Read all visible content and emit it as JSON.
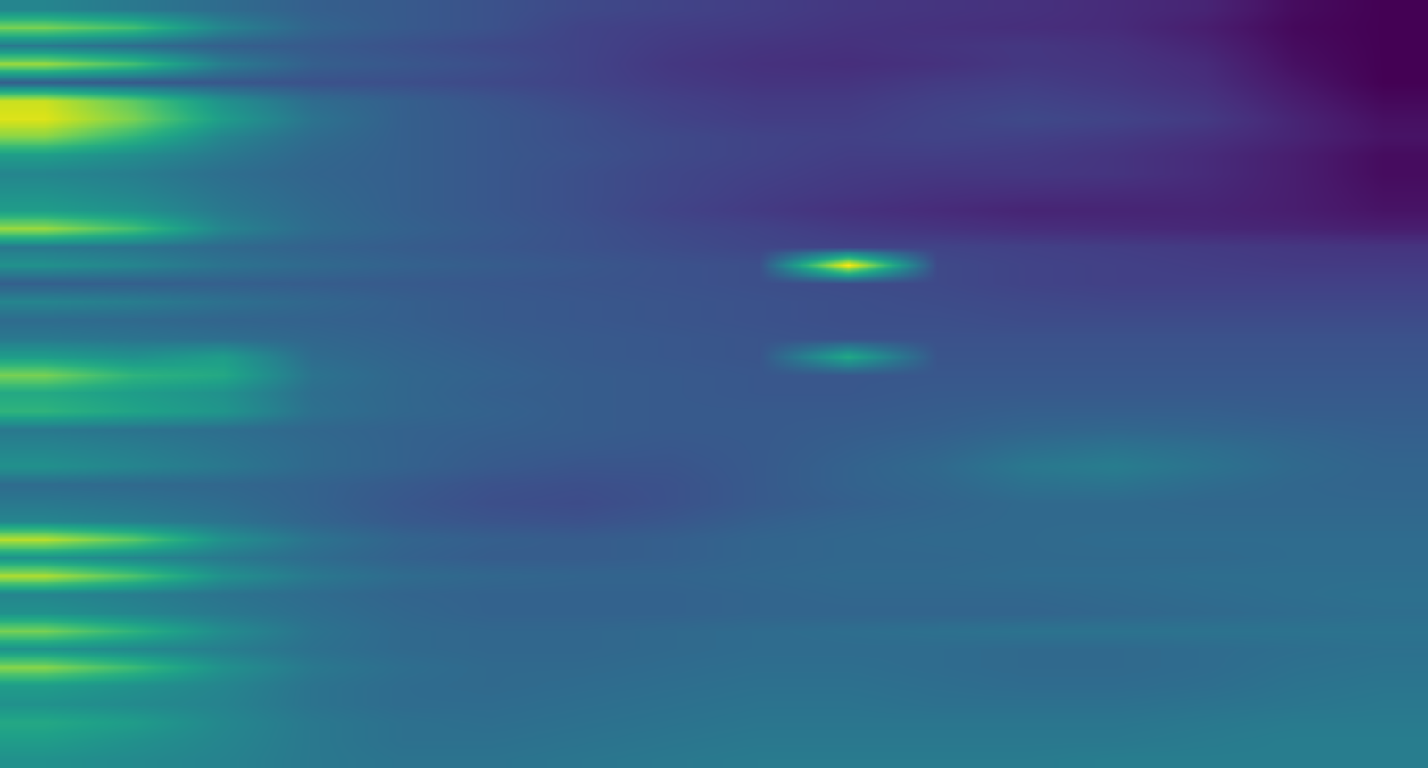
{
  "chart_data": {
    "type": "heatmap",
    "tick_labels": false,
    "color": "viridis",
    "zlim": [
      0,
      1
    ],
    "cells": [
      [
        0.45,
        0.4,
        0.35,
        0.3,
        0.28,
        0.25,
        0.22,
        0.2,
        0.18,
        0.16,
        0.15,
        0.14,
        0.12,
        0.1,
        0.03,
        0.0
      ],
      [
        0.8,
        0.7,
        0.45,
        0.32,
        0.28,
        0.25,
        0.2,
        0.18,
        0.17,
        0.15,
        0.14,
        0.13,
        0.12,
        0.08,
        0.02,
        0.0
      ],
      [
        0.4,
        0.35,
        0.3,
        0.28,
        0.25,
        0.22,
        0.2,
        0.17,
        0.15,
        0.14,
        0.15,
        0.16,
        0.14,
        0.1,
        0.03,
        0.0
      ],
      [
        0.85,
        0.7,
        0.42,
        0.3,
        0.27,
        0.24,
        0.2,
        0.16,
        0.14,
        0.13,
        0.14,
        0.16,
        0.15,
        0.12,
        0.04,
        0.0
      ],
      [
        0.3,
        0.28,
        0.27,
        0.25,
        0.24,
        0.22,
        0.2,
        0.17,
        0.15,
        0.15,
        0.17,
        0.18,
        0.16,
        0.13,
        0.06,
        0.0
      ],
      [
        0.92,
        0.75,
        0.5,
        0.35,
        0.3,
        0.26,
        0.22,
        0.19,
        0.17,
        0.17,
        0.19,
        0.2,
        0.18,
        0.15,
        0.08,
        0.02
      ],
      [
        0.95,
        0.8,
        0.55,
        0.38,
        0.3,
        0.27,
        0.24,
        0.2,
        0.18,
        0.18,
        0.2,
        0.22,
        0.2,
        0.17,
        0.1,
        0.04
      ],
      [
        0.82,
        0.65,
        0.45,
        0.35,
        0.3,
        0.27,
        0.24,
        0.22,
        0.2,
        0.19,
        0.2,
        0.19,
        0.17,
        0.14,
        0.1,
        0.05
      ],
      [
        0.55,
        0.48,
        0.4,
        0.33,
        0.3,
        0.27,
        0.25,
        0.22,
        0.2,
        0.18,
        0.18,
        0.17,
        0.15,
        0.12,
        0.08,
        0.03
      ],
      [
        0.45,
        0.42,
        0.36,
        0.32,
        0.3,
        0.27,
        0.24,
        0.21,
        0.19,
        0.17,
        0.16,
        0.16,
        0.15,
        0.12,
        0.08,
        0.03
      ],
      [
        0.5,
        0.45,
        0.38,
        0.33,
        0.3,
        0.27,
        0.24,
        0.21,
        0.18,
        0.16,
        0.14,
        0.13,
        0.12,
        0.11,
        0.08,
        0.04
      ],
      [
        0.55,
        0.5,
        0.4,
        0.34,
        0.3,
        0.27,
        0.24,
        0.2,
        0.17,
        0.14,
        0.12,
        0.1,
        0.1,
        0.1,
        0.08,
        0.05
      ],
      [
        0.85,
        0.7,
        0.45,
        0.35,
        0.31,
        0.28,
        0.25,
        0.22,
        0.2,
        0.17,
        0.15,
        0.13,
        0.12,
        0.11,
        0.1,
        0.08
      ],
      [
        0.4,
        0.38,
        0.34,
        0.31,
        0.29,
        0.27,
        0.25,
        0.23,
        0.21,
        0.2,
        0.2,
        0.19,
        0.18,
        0.17,
        0.16,
        0.15
      ],
      [
        0.5,
        0.45,
        0.38,
        0.34,
        0.31,
        0.29,
        0.27,
        0.25,
        0.24,
        1.0,
        0.22,
        0.2,
        0.19,
        0.18,
        0.17,
        0.17
      ],
      [
        0.3,
        0.3,
        0.3,
        0.29,
        0.28,
        0.27,
        0.26,
        0.25,
        0.24,
        0.23,
        0.22,
        0.2,
        0.19,
        0.19,
        0.19,
        0.19
      ],
      [
        0.45,
        0.42,
        0.37,
        0.33,
        0.3,
        0.28,
        0.27,
        0.26,
        0.25,
        0.24,
        0.23,
        0.22,
        0.21,
        0.21,
        0.21,
        0.21
      ],
      [
        0.35,
        0.34,
        0.32,
        0.31,
        0.3,
        0.28,
        0.27,
        0.26,
        0.25,
        0.24,
        0.24,
        0.23,
        0.23,
        0.23,
        0.23,
        0.23
      ],
      [
        0.4,
        0.38,
        0.36,
        0.33,
        0.31,
        0.29,
        0.28,
        0.27,
        0.26,
        0.25,
        0.25,
        0.25,
        0.25,
        0.25,
        0.25,
        0.25
      ],
      [
        0.55,
        0.5,
        0.55,
        0.35,
        0.32,
        0.3,
        0.28,
        0.27,
        0.26,
        0.6,
        0.26,
        0.26,
        0.26,
        0.26,
        0.26,
        0.26
      ],
      [
        0.8,
        0.65,
        0.6,
        0.38,
        0.33,
        0.31,
        0.29,
        0.28,
        0.27,
        0.27,
        0.27,
        0.27,
        0.27,
        0.27,
        0.27,
        0.27
      ],
      [
        0.6,
        0.55,
        0.5,
        0.36,
        0.33,
        0.3,
        0.29,
        0.28,
        0.27,
        0.27,
        0.28,
        0.28,
        0.28,
        0.28,
        0.28,
        0.28
      ],
      [
        0.65,
        0.58,
        0.52,
        0.37,
        0.33,
        0.31,
        0.29,
        0.28,
        0.28,
        0.28,
        0.29,
        0.3,
        0.3,
        0.3,
        0.29,
        0.29
      ],
      [
        0.4,
        0.38,
        0.36,
        0.33,
        0.31,
        0.3,
        0.29,
        0.28,
        0.28,
        0.29,
        0.3,
        0.32,
        0.33,
        0.32,
        0.31,
        0.3
      ],
      [
        0.45,
        0.42,
        0.38,
        0.34,
        0.31,
        0.29,
        0.28,
        0.27,
        0.28,
        0.3,
        0.32,
        0.36,
        0.38,
        0.36,
        0.33,
        0.31
      ],
      [
        0.5,
        0.45,
        0.4,
        0.34,
        0.31,
        0.28,
        0.26,
        0.26,
        0.28,
        0.31,
        0.34,
        0.4,
        0.42,
        0.38,
        0.34,
        0.32
      ],
      [
        0.35,
        0.34,
        0.33,
        0.31,
        0.28,
        0.25,
        0.24,
        0.25,
        0.28,
        0.31,
        0.33,
        0.37,
        0.38,
        0.35,
        0.33,
        0.32
      ],
      [
        0.4,
        0.38,
        0.35,
        0.31,
        0.27,
        0.24,
        0.23,
        0.25,
        0.28,
        0.3,
        0.32,
        0.34,
        0.34,
        0.33,
        0.33,
        0.33
      ],
      [
        0.45,
        0.42,
        0.38,
        0.32,
        0.28,
        0.26,
        0.25,
        0.27,
        0.3,
        0.32,
        0.33,
        0.34,
        0.34,
        0.34,
        0.34,
        0.34
      ],
      [
        0.9,
        0.75,
        0.5,
        0.38,
        0.32,
        0.3,
        0.29,
        0.3,
        0.32,
        0.33,
        0.34,
        0.34,
        0.35,
        0.35,
        0.35,
        0.35
      ],
      [
        0.5,
        0.45,
        0.4,
        0.35,
        0.31,
        0.29,
        0.29,
        0.3,
        0.32,
        0.33,
        0.33,
        0.34,
        0.34,
        0.34,
        0.35,
        0.35
      ],
      [
        0.88,
        0.72,
        0.5,
        0.4,
        0.35,
        0.33,
        0.32,
        0.32,
        0.33,
        0.34,
        0.34,
        0.35,
        0.35,
        0.36,
        0.36,
        0.36
      ],
      [
        0.45,
        0.42,
        0.38,
        0.35,
        0.32,
        0.31,
        0.31,
        0.31,
        0.32,
        0.33,
        0.33,
        0.33,
        0.34,
        0.35,
        0.36,
        0.37
      ],
      [
        0.5,
        0.45,
        0.4,
        0.36,
        0.33,
        0.31,
        0.31,
        0.31,
        0.32,
        0.32,
        0.32,
        0.32,
        0.33,
        0.34,
        0.35,
        0.36
      ],
      [
        0.8,
        0.65,
        0.48,
        0.38,
        0.34,
        0.33,
        0.33,
        0.34,
        0.35,
        0.36,
        0.37,
        0.38,
        0.38,
        0.38,
        0.38,
        0.38
      ],
      [
        0.5,
        0.46,
        0.42,
        0.37,
        0.34,
        0.33,
        0.33,
        0.34,
        0.35,
        0.35,
        0.35,
        0.34,
        0.34,
        0.35,
        0.36,
        0.37
      ],
      [
        0.82,
        0.68,
        0.5,
        0.4,
        0.36,
        0.34,
        0.34,
        0.35,
        0.36,
        0.36,
        0.35,
        0.34,
        0.34,
        0.35,
        0.37,
        0.38
      ],
      [
        0.55,
        0.5,
        0.45,
        0.38,
        0.35,
        0.34,
        0.35,
        0.36,
        0.37,
        0.37,
        0.36,
        0.35,
        0.35,
        0.36,
        0.38,
        0.39
      ],
      [
        0.5,
        0.47,
        0.44,
        0.38,
        0.35,
        0.35,
        0.36,
        0.37,
        0.38,
        0.38,
        0.37,
        0.37,
        0.37,
        0.38,
        0.39,
        0.4
      ],
      [
        0.6,
        0.55,
        0.46,
        0.4,
        0.37,
        0.36,
        0.37,
        0.38,
        0.39,
        0.39,
        0.39,
        0.39,
        0.39,
        0.4,
        0.41,
        0.41
      ],
      [
        0.55,
        0.5,
        0.45,
        0.4,
        0.37,
        0.37,
        0.38,
        0.39,
        0.4,
        0.4,
        0.4,
        0.4,
        0.4,
        0.41,
        0.42,
        0.42
      ],
      [
        0.5,
        0.47,
        0.44,
        0.4,
        0.38,
        0.38,
        0.39,
        0.4,
        0.41,
        0.41,
        0.41,
        0.41,
        0.42,
        0.42,
        0.42,
        0.42
      ]
    ]
  }
}
